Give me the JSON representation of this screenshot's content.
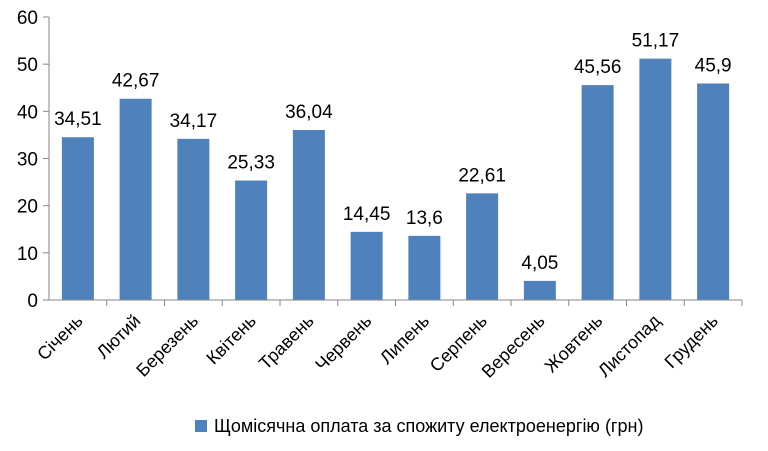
{
  "chart_data": {
    "type": "bar",
    "title": "",
    "xlabel": "",
    "ylabel": "",
    "ylim": [
      0,
      60
    ],
    "yticks": [
      0,
      10,
      20,
      30,
      40,
      50,
      60
    ],
    "grid": false,
    "legend_position": "bottom",
    "categories": [
      "Січень",
      "Лютий",
      "Березень",
      "Квітень",
      "Травень",
      "Червень",
      "Липень",
      "Серпень",
      "Вересень",
      "Жовтень",
      "Листопад",
      "Грудень"
    ],
    "series": [
      {
        "name": "Щомісячна оплата за спожиту електроенергію (грн)",
        "values": [
          34.51,
          42.67,
          34.17,
          25.33,
          36.04,
          14.45,
          13.6,
          22.61,
          4.05,
          45.56,
          51.17,
          45.9
        ],
        "labels": [
          "34,51",
          "42,67",
          "34,17",
          "25,33",
          "36,04",
          "14,45",
          "13,6",
          "22,61",
          "4,05",
          "45,56",
          "51,17",
          "45,9"
        ],
        "color": "#4F81BD"
      }
    ],
    "axis_color": "#868686"
  }
}
